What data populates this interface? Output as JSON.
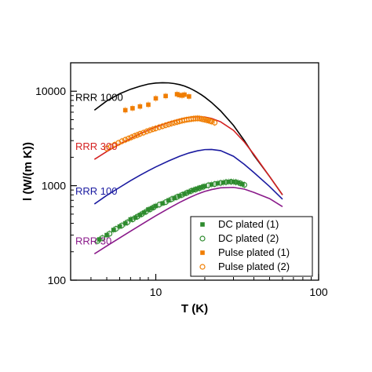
{
  "chart_data": {
    "type": "scatter",
    "title": "",
    "xlabel": "T (K)",
    "ylabel": "l (W/(m K))",
    "xscale": "log",
    "yscale": "log",
    "xlim": [
      3,
      100
    ],
    "ylim": [
      100,
      20000
    ],
    "xtick_labels": [
      "10",
      "100"
    ],
    "ytick_labels": [
      "100",
      "1000",
      "10000"
    ],
    "grid": false,
    "legend_position": "bottom-right",
    "curves": [
      {
        "name": "RRR 1000",
        "color": "#000000",
        "x": [
          4.2,
          5,
          6,
          7,
          8,
          9,
          10,
          11,
          12,
          13,
          14,
          15,
          16,
          17,
          18,
          19,
          20,
          22,
          25,
          30,
          35,
          40,
          50,
          60
        ],
        "y": [
          6300,
          7900,
          9400,
          10500,
          11300,
          11900,
          12200,
          12300,
          12250,
          12050,
          11750,
          11350,
          10850,
          10300,
          9750,
          9200,
          8650,
          7600,
          6200,
          4350,
          3000,
          2100,
          1250,
          800
        ]
      },
      {
        "name": "RRR 300",
        "color": "#d42020",
        "x": [
          4.2,
          5,
          6,
          7,
          8,
          9,
          10,
          12,
          14,
          16,
          18,
          20,
          22,
          25,
          30,
          35,
          40,
          50,
          60
        ],
        "y": [
          1900,
          2300,
          2750,
          3150,
          3550,
          3880,
          4180,
          4680,
          5050,
          5280,
          5370,
          5330,
          5150,
          4750,
          3850,
          2900,
          2150,
          1250,
          800
        ]
      },
      {
        "name": "RRR 100",
        "color": "#1a1aa0",
        "x": [
          4.2,
          5,
          6,
          7,
          8,
          9,
          10,
          12,
          14,
          16,
          18,
          20,
          22,
          25,
          30,
          35,
          40,
          50,
          60
        ],
        "y": [
          640,
          790,
          960,
          1130,
          1290,
          1440,
          1580,
          1830,
          2050,
          2220,
          2340,
          2410,
          2420,
          2350,
          2050,
          1680,
          1380,
          980,
          720
        ]
      },
      {
        "name": "RRR 30",
        "color": "#8a1a8a",
        "x": [
          4.2,
          5,
          6,
          7,
          8,
          9,
          10,
          12,
          14,
          16,
          18,
          20,
          22,
          25,
          30,
          35,
          40,
          50,
          60
        ],
        "y": [
          190,
          230,
          280,
          330,
          380,
          430,
          480,
          575,
          665,
          745,
          815,
          870,
          910,
          950,
          960,
          920,
          850,
          730,
          600
        ]
      }
    ],
    "series": [
      {
        "name": "DC plated (1)",
        "color": "#2e8b2e",
        "marker": "square-filled",
        "x": [
          4.5,
          5.0,
          5.5,
          6.0,
          6.5,
          7.0,
          7.5,
          8.0,
          8.5,
          9.0,
          9.5,
          10.0,
          11,
          12,
          13,
          14,
          15,
          16,
          17,
          18,
          19,
          20,
          22,
          24,
          26,
          28,
          30,
          32,
          34
        ],
        "y": [
          270,
          300,
          340,
          370,
          400,
          440,
          460,
          490,
          520,
          560,
          580,
          610,
          650,
          700,
          740,
          780,
          820,
          860,
          900,
          930,
          960,
          990,
          1030,
          1060,
          1080,
          1100,
          1100,
          1080,
          1040
        ]
      },
      {
        "name": "DC plated (2)",
        "color": "#2e8b2e",
        "marker": "circle-open",
        "x": [
          4.4,
          4.7,
          5.2,
          5.7,
          6.2,
          6.7,
          7.2,
          7.7,
          8.2,
          8.7,
          9.2,
          9.7,
          10.5,
          11.5,
          12.5,
          13.5,
          14.5,
          15.5,
          16.5,
          17.5,
          18.5,
          19.5,
          21,
          23,
          25,
          27,
          29,
          31,
          33,
          35
        ],
        "y": [
          260,
          280,
          310,
          350,
          380,
          410,
          440,
          470,
          500,
          530,
          560,
          590,
          630,
          670,
          720,
          760,
          800,
          840,
          880,
          910,
          940,
          970,
          1010,
          1040,
          1070,
          1090,
          1100,
          1090,
          1060,
          1020
        ]
      },
      {
        "name": "Pulse plated (1)",
        "color": "#f07d00",
        "marker": "square-filled",
        "x": [
          6.5,
          7.2,
          8.0,
          9.0,
          10.0,
          11.5,
          13.5,
          14.0,
          14.5,
          15.0,
          16.0
        ],
        "y": [
          6300,
          6600,
          6900,
          7200,
          8400,
          8900,
          9300,
          9100,
          9000,
          9200,
          8800
        ]
      },
      {
        "name": "Pulse plated (2)",
        "color": "#f07d00",
        "marker": "circle-open",
        "x": [
          5.0,
          5.3,
          5.6,
          5.9,
          6.2,
          6.5,
          6.8,
          7.1,
          7.4,
          7.7,
          8.0,
          8.4,
          8.8,
          9.2,
          9.6,
          10.0,
          10.5,
          11.0,
          11.5,
          12.0,
          12.5,
          13.0,
          13.5,
          14.0,
          14.5,
          15.0,
          15.5,
          16.0,
          16.5,
          17.0,
          17.5,
          18.0,
          18.5,
          19.0,
          19.5,
          20.0,
          20.5,
          21.0,
          21.5,
          22.0,
          23.0
        ],
        "y": [
          2480,
          2600,
          2720,
          2840,
          2960,
          3060,
          3160,
          3260,
          3360,
          3440,
          3540,
          3640,
          3760,
          3860,
          3960,
          4040,
          4160,
          4260,
          4360,
          4460,
          4560,
          4640,
          4720,
          4800,
          4880,
          4940,
          5000,
          5040,
          5080,
          5120,
          5140,
          5160,
          5150,
          5100,
          5050,
          5000,
          4950,
          4900,
          4850,
          4780,
          4650
        ]
      }
    ]
  }
}
